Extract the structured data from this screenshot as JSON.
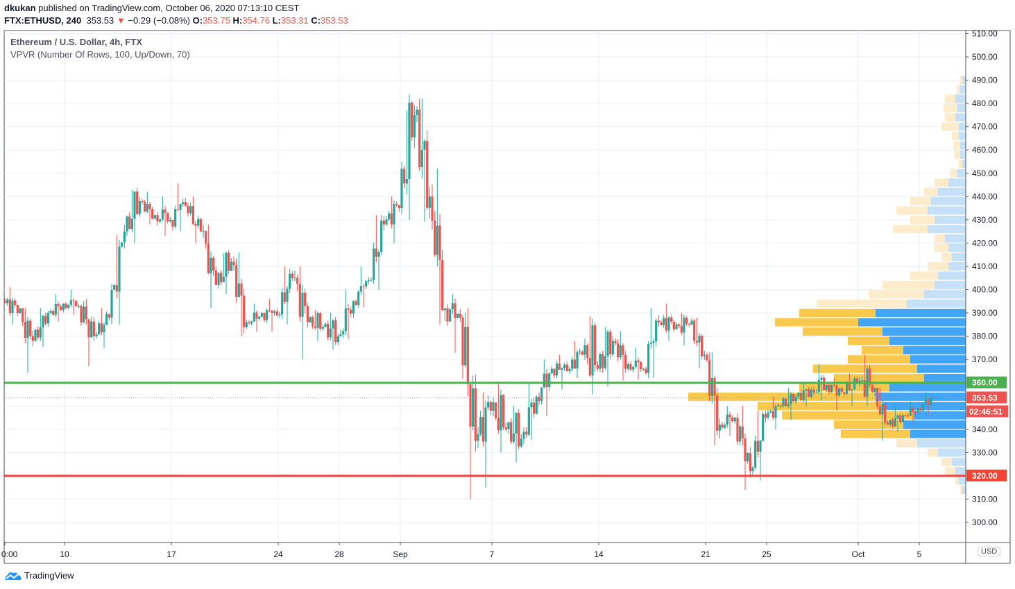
{
  "header": {
    "author": "dkukan",
    "published_text": "published on TradingView.com, October 06, 2020 07:13:10 CEST",
    "symbol": "FTX:ETHUSD, 240",
    "last": "353.53",
    "change": "−0.29 (−0.08%)",
    "o_label": "O:",
    "o": "353.75",
    "h_label": "H:",
    "h": "354.76",
    "l_label": "L:",
    "l": "353.31",
    "c_label": "C:",
    "c": "353.53"
  },
  "legend": {
    "title": "Ethereum / U.S. Dollar, 4h, FTX",
    "indicator": "VPVR (Number Of Rows, 100, Up/Down, 70)"
  },
  "currency": "USD",
  "branding": "TradingView",
  "colors": {
    "up": "#26a69a",
    "down": "#ef5350",
    "support": "#4caf50",
    "resistance": "#f44336",
    "vp_up": "#42a5f5",
    "vp_down": "#f9c94d",
    "vp_up_light": "#c6e1f7",
    "vp_down_light": "#fdeccb"
  },
  "chart_data": {
    "type": "candlestick",
    "title": "Ethereum / U.S. Dollar, 4h, FTX",
    "interval": "4h (daily OHLC approximation)",
    "ylim": [
      295,
      512
    ],
    "y_ticks": [
      "510.00",
      "500.00",
      "490.00",
      "480.00",
      "470.00",
      "460.00",
      "450.00",
      "440.00",
      "430.00",
      "420.00",
      "410.00",
      "400.00",
      "390.00",
      "380.00",
      "370.00",
      "340.00",
      "330.00",
      "310.00",
      "300.00"
    ],
    "y_tick_values": [
      510,
      500,
      490,
      480,
      470,
      460,
      450,
      440,
      430,
      420,
      410,
      400,
      390,
      380,
      370,
      340,
      330,
      310,
      300
    ],
    "x_ticks": [
      {
        "label": "0:00",
        "day": 0
      },
      {
        "label": "10",
        "day": 4
      },
      {
        "label": "17",
        "day": 11
      },
      {
        "label": "24",
        "day": 18
      },
      {
        "label": "28",
        "day": 22
      },
      {
        "label": "Sep",
        "day": 26
      },
      {
        "label": "7",
        "day": 32
      },
      {
        "label": "14",
        "day": 39
      },
      {
        "label": "21",
        "day": 46
      },
      {
        "label": "25",
        "day": 50
      },
      {
        "label": "Oct",
        "day": 56
      },
      {
        "label": "5",
        "day": 60
      }
    ],
    "start_date": "2020-08-06",
    "daily_ohlc": [
      [
        395,
        401,
        385,
        390
      ],
      [
        390,
        392,
        362,
        378
      ],
      [
        378,
        392,
        375,
        390
      ],
      [
        390,
        398,
        385,
        394
      ],
      [
        394,
        400,
        388,
        393
      ],
      [
        393,
        396,
        367,
        380
      ],
      [
        380,
        392,
        375,
        388
      ],
      [
        388,
        428,
        385,
        425
      ],
      [
        425,
        445,
        420,
        438
      ],
      [
        438,
        442,
        428,
        432
      ],
      [
        432,
        440,
        420,
        430
      ],
      [
        430,
        447,
        425,
        436
      ],
      [
        436,
        440,
        420,
        425
      ],
      [
        425,
        428,
        392,
        402
      ],
      [
        402,
        418,
        398,
        412
      ],
      [
        412,
        416,
        380,
        386
      ],
      [
        386,
        394,
        382,
        390
      ],
      [
        390,
        396,
        380,
        389
      ],
      [
        389,
        410,
        385,
        405
      ],
      [
        405,
        410,
        370,
        386
      ],
      [
        386,
        392,
        378,
        384
      ],
      [
        384,
        390,
        372,
        380
      ],
      [
        380,
        400,
        375,
        395
      ],
      [
        395,
        410,
        392,
        404
      ],
      [
        404,
        432,
        400,
        428
      ],
      [
        428,
        440,
        420,
        435
      ],
      [
        435,
        489,
        430,
        475
      ],
      [
        475,
        482,
        420,
        440
      ],
      [
        440,
        452,
        385,
        392
      ],
      [
        392,
        398,
        368,
        388
      ],
      [
        388,
        392,
        310,
        335
      ],
      [
        335,
        356,
        315,
        348
      ],
      [
        348,
        360,
        330,
        340
      ],
      [
        340,
        350,
        325,
        336
      ],
      [
        336,
        360,
        332,
        354
      ],
      [
        354,
        370,
        345,
        366
      ],
      [
        366,
        372,
        355,
        365
      ],
      [
        365,
        378,
        362,
        372
      ],
      [
        372,
        391,
        355,
        366
      ],
      [
        366,
        384,
        358,
        378
      ],
      [
        378,
        382,
        360,
        368
      ],
      [
        368,
        375,
        360,
        366
      ],
      [
        366,
        392,
        362,
        386
      ],
      [
        386,
        394,
        378,
        383
      ],
      [
        383,
        390,
        376,
        385
      ],
      [
        385,
        388,
        366,
        372
      ],
      [
        372,
        373,
        330,
        342
      ],
      [
        342,
        350,
        334,
        345
      ],
      [
        345,
        350,
        314,
        322
      ],
      [
        322,
        348,
        318,
        345
      ],
      [
        345,
        354,
        340,
        350
      ],
      [
        350,
        358,
        344,
        354
      ],
      [
        354,
        360,
        346,
        357
      ],
      [
        357,
        368,
        350,
        359
      ],
      [
        359,
        362,
        348,
        356
      ],
      [
        356,
        364,
        350,
        360
      ],
      [
        360,
        372,
        350,
        356
      ],
      [
        356,
        358,
        335,
        342
      ],
      [
        342,
        350,
        338,
        346
      ],
      [
        346,
        352,
        342,
        349
      ],
      [
        349,
        356,
        346,
        353.75
      ],
      [
        353.75,
        354.76,
        353.31,
        353.53
      ]
    ],
    "horizontal_lines": [
      {
        "price": 360,
        "label": "360.00",
        "color": "#4caf50"
      },
      {
        "price": 320,
        "label": "320.00",
        "color": "#f44336"
      }
    ],
    "last_price": {
      "price": 353.53,
      "label": "353.53",
      "countdown": "02:46:51"
    },
    "volume_profile": {
      "row_size": 4,
      "value_area": [
        336,
        392
      ],
      "rows": [
        {
          "price": 490,
          "up": 5,
          "down": 3
        },
        {
          "price": 486,
          "up": 8,
          "down": 5
        },
        {
          "price": 482,
          "up": 15,
          "down": 15
        },
        {
          "price": 478,
          "up": 12,
          "down": 20
        },
        {
          "price": 474,
          "up": 15,
          "down": 15
        },
        {
          "price": 470,
          "up": 10,
          "down": 25
        },
        {
          "price": 466,
          "up": 10,
          "down": 10
        },
        {
          "price": 462,
          "up": 8,
          "down": 10
        },
        {
          "price": 458,
          "up": 8,
          "down": 8
        },
        {
          "price": 454,
          "up": 5,
          "down": 5
        },
        {
          "price": 450,
          "up": 12,
          "down": 10
        },
        {
          "price": 446,
          "up": 25,
          "down": 20
        },
        {
          "price": 442,
          "up": 40,
          "down": 20
        },
        {
          "price": 438,
          "up": 50,
          "down": 30
        },
        {
          "price": 434,
          "up": 55,
          "down": 45
        },
        {
          "price": 430,
          "up": 45,
          "down": 35
        },
        {
          "price": 426,
          "up": 55,
          "down": 50
        },
        {
          "price": 422,
          "up": 30,
          "down": 15
        },
        {
          "price": 418,
          "up": 25,
          "down": 20
        },
        {
          "price": 414,
          "up": 20,
          "down": 15
        },
        {
          "price": 410,
          "up": 25,
          "down": 30
        },
        {
          "price": 406,
          "up": 40,
          "down": 40
        },
        {
          "price": 402,
          "up": 45,
          "down": 75
        },
        {
          "price": 398,
          "up": 60,
          "down": 80
        },
        {
          "price": 394,
          "up": 85,
          "down": 130
        },
        {
          "price": 390,
          "up": 130,
          "down": 110
        },
        {
          "price": 386,
          "up": 155,
          "down": 120
        },
        {
          "price": 382,
          "up": 120,
          "down": 115
        },
        {
          "price": 378,
          "up": 110,
          "down": 60
        },
        {
          "price": 374,
          "up": 90,
          "down": 60
        },
        {
          "price": 370,
          "up": 80,
          "down": 90
        },
        {
          "price": 366,
          "up": 70,
          "down": 150
        },
        {
          "price": 362,
          "up": 60,
          "down": 130
        },
        {
          "price": 358,
          "up": 110,
          "down": 130
        },
        {
          "price": 354,
          "up": 130,
          "down": 270
        },
        {
          "price": 350,
          "up": 120,
          "down": 180
        },
        {
          "price": 346,
          "up": 75,
          "down": 190
        },
        {
          "price": 342,
          "up": 90,
          "down": 100
        },
        {
          "price": 338,
          "up": 80,
          "down": 100
        },
        {
          "price": 334,
          "up": 70,
          "down": 30
        },
        {
          "price": 330,
          "up": 40,
          "down": 15
        },
        {
          "price": 326,
          "up": 20,
          "down": 15
        },
        {
          "price": 322,
          "up": 15,
          "down": 15
        },
        {
          "price": 318,
          "up": 10,
          "down": 5
        },
        {
          "price": 314,
          "up": 5,
          "down": 3
        }
      ]
    }
  }
}
